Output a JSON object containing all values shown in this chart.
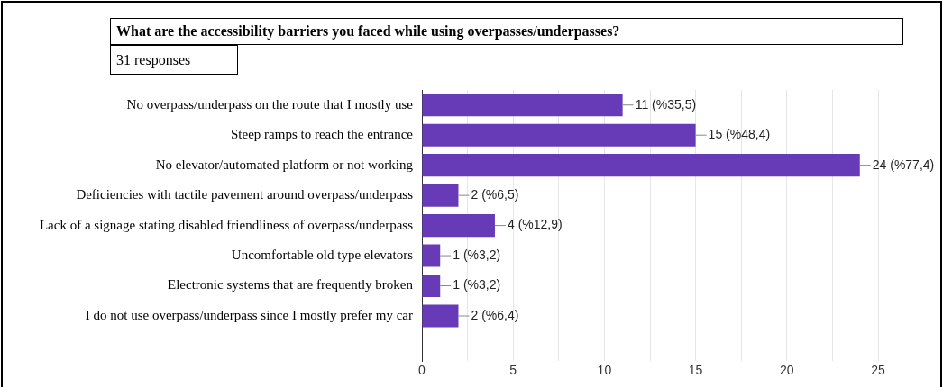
{
  "chart_data": {
    "type": "bar",
    "orientation": "horizontal",
    "title": "What are the accessibility barriers you faced while using overpasses/underpasses?",
    "subtitle": "31 responses",
    "categories": [
      "No overpass/underpass on the route that I mostly use",
      "Steep ramps to reach the entrance",
      "No elevator/automated platform or not working",
      "Deficiencies with tactile pavement around overpass/underpass",
      "Lack of a signage stating disabled friendliness of overpass/underpass",
      "Uncomfortable old type elevators",
      "Electronic systems that are frequently broken",
      "I do not use overpass/underpass since I mostly prefer my car",
      null
    ],
    "values": [
      11,
      15,
      24,
      2,
      4,
      1,
      1,
      2,
      0
    ],
    "value_labels": [
      "11 (%35,5)",
      "15 (%48,4)",
      "24 (%77,4)",
      "2 (%6,5)",
      "4 (%12,9)",
      "1 (%3,2)",
      "1 (%3,2)",
      "2 (%6,4)",
      null
    ],
    "color": "#673ab7",
    "xlim": [
      0,
      25
    ],
    "xticks": [
      0,
      {
        "value": 2.5,
        "label": null
      },
      5,
      {
        "value": 7.5,
        "label": null
      },
      10,
      {
        "value": 12.5,
        "label": null
      },
      15,
      {
        "value": 17.5,
        "label": null
      },
      20,
      {
        "value": 22.5,
        "label": null
      },
      25
    ],
    "grid": "x",
    "legend": false
  }
}
